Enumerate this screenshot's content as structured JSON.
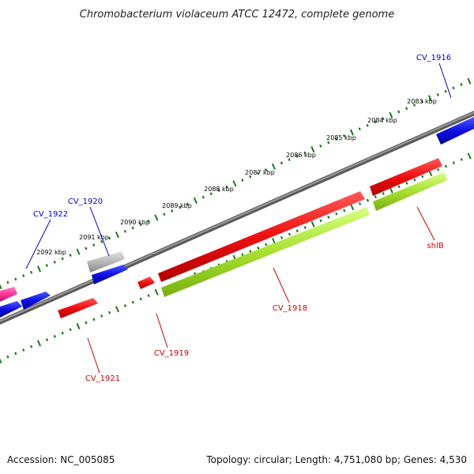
{
  "title": "Chromobacterium violaceum ATCC 12472, complete genome",
  "footer": {
    "accession": "Accession: NC_005085",
    "summary": "Topology: circular; Length: 4,751,080 bp; Genes: 4,530"
  },
  "scale": {
    "unit_labels": [
      "2083 kbp",
      "2084 kbp",
      "2085 kbp",
      "2086 kbp",
      "2087 kbp",
      "2088 kbp",
      "2089 kbp",
      "2090 kbp",
      "2091 kbp",
      "2092 kbp"
    ]
  },
  "genes": [
    {
      "name": "CV_1916",
      "strand": "forward",
      "color": "#0000cc"
    },
    {
      "name": "CV_1920",
      "strand": "forward",
      "color": "#0000cc"
    },
    {
      "name": "CV_1922",
      "strand": "forward",
      "color": "#0000cc"
    },
    {
      "name": "CV_1918",
      "strand": "forward",
      "color": "#cc0000"
    },
    {
      "name": "CV_1919",
      "strand": "forward",
      "color": "#cc0000"
    },
    {
      "name": "CV_1921",
      "strand": "forward",
      "color": "#cc0000"
    },
    {
      "name": "shlB",
      "strand": "forward",
      "color": "#cc0000"
    }
  ],
  "colors": {
    "backbone": "#808080",
    "ticks": "#1a7a1a",
    "blue_feature": "#1010e0",
    "red_feature": "#ee1010",
    "green_feature": "#a8e030",
    "grey_feature": "#b8b8b8",
    "pink_feature": "#ff3399"
  }
}
